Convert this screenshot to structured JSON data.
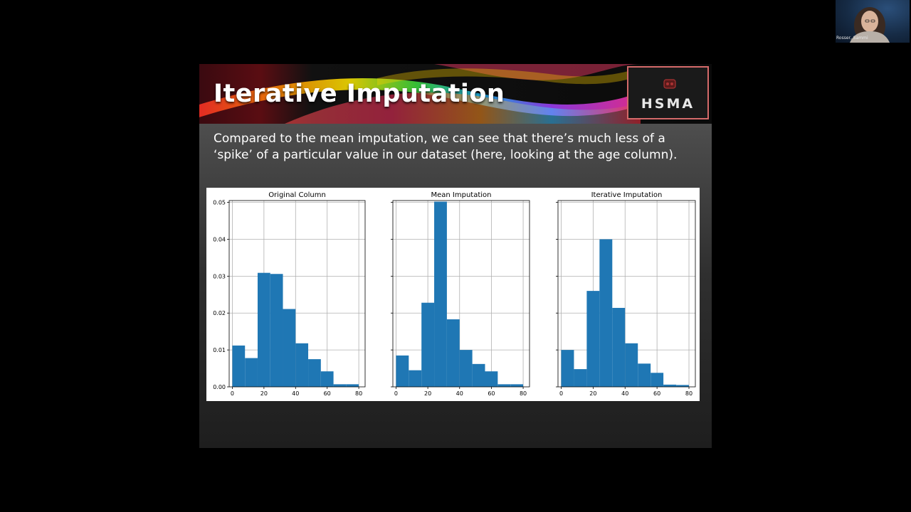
{
  "slide": {
    "title": "Iterative Imputation",
    "caption": "Compared to the mean imputation, we can see that there’s much less of a ‘spike’ of a particular value in our dataset (here, looking at the age column).",
    "logo_text": "HSMA"
  },
  "webcam": {
    "participant_name": "Rosser, Sammi"
  },
  "colors": {
    "bar": "#1f77b4",
    "grid": "#b0b0b0",
    "slide_text": "#ffffff"
  },
  "chart_data": [
    {
      "type": "bar",
      "title": "Original Column",
      "bin_edges": [
        0,
        8,
        16,
        24,
        32,
        40,
        48,
        56,
        64,
        72,
        80
      ],
      "values": [
        0.0112,
        0.0078,
        0.0309,
        0.0306,
        0.0211,
        0.0118,
        0.0075,
        0.0042,
        0.0007,
        0.0007
      ],
      "xlim": [
        -2,
        84
      ],
      "ylim": [
        0,
        0.0505
      ],
      "xticks": [
        "0",
        "20",
        "40",
        "60",
        "80"
      ],
      "yticks": [
        "0.00",
        "0.01",
        "0.02",
        "0.03",
        "0.04",
        "0.05"
      ],
      "grid": true
    },
    {
      "type": "bar",
      "title": "Mean Imputation",
      "bin_edges": [
        0,
        8,
        16,
        24,
        32,
        40,
        48,
        56,
        64,
        72,
        80
      ],
      "values": [
        0.0085,
        0.0045,
        0.0228,
        0.0502,
        0.0183,
        0.01,
        0.0062,
        0.0042,
        0.0007,
        0.0007
      ],
      "xlim": [
        -2,
        84
      ],
      "ylim": [
        0,
        0.0505
      ],
      "xticks": [
        "0",
        "20",
        "40",
        "60",
        "80"
      ],
      "grid": true
    },
    {
      "type": "bar",
      "title": "Iterative Imputation",
      "bin_edges": [
        0,
        8,
        16,
        24,
        32,
        40,
        48,
        56,
        64,
        72,
        80
      ],
      "values": [
        0.01,
        0.0048,
        0.026,
        0.04,
        0.0214,
        0.0118,
        0.0063,
        0.0038,
        0.0006,
        0.0005
      ],
      "xlim": [
        -2,
        84
      ],
      "ylim": [
        0,
        0.0505
      ],
      "xticks": [
        "0",
        "20",
        "40",
        "60",
        "80"
      ],
      "grid": true
    }
  ]
}
